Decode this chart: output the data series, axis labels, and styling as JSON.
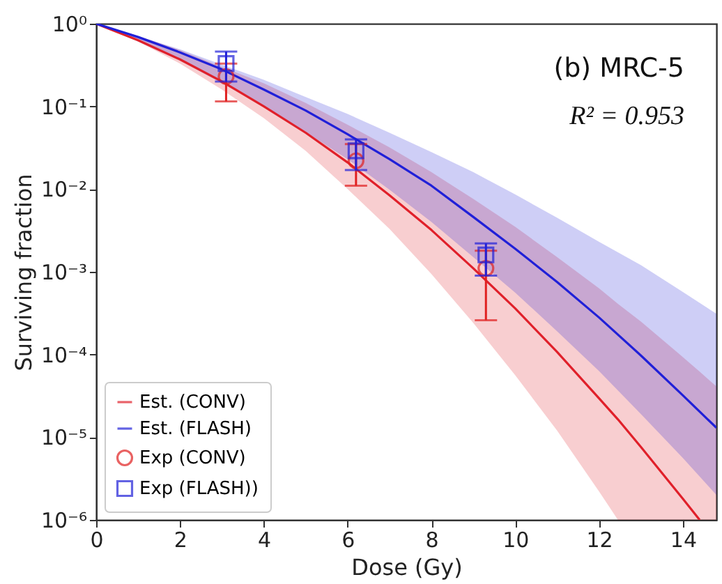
{
  "chart_data": {
    "type": "line",
    "xlabel": "Dose (Gy)",
    "ylabel": "Surviving fraction",
    "log": true,
    "grid": false,
    "legend": "bottom left",
    "xlim": [
      0,
      14.8
    ],
    "xticks": [
      0,
      2,
      4,
      6,
      8,
      10,
      12,
      14
    ],
    "ylim": [
      1e-06,
      1
    ],
    "yticks": [
      {
        "value": 1e-06,
        "label": "10⁻⁶"
      },
      {
        "value": 1e-05,
        "label": "10⁻⁵"
      },
      {
        "value": 0.0001,
        "label": "10⁻⁴"
      },
      {
        "value": 0.001,
        "label": "10⁻³"
      },
      {
        "value": 0.01,
        "label": "10⁻²"
      },
      {
        "value": 0.1,
        "label": "10⁻¹"
      },
      {
        "value": 1,
        "label": "10⁰"
      }
    ],
    "annotations": [
      "(b) MRC-5",
      "R² = 0.953"
    ],
    "series": [
      {
        "name": "Est. (CONV)",
        "color": "#e0202a",
        "x": [
          0,
          1,
          2,
          3,
          4,
          5,
          6,
          7,
          8,
          9,
          10,
          11,
          12,
          12.45,
          13,
          14,
          14.4,
          14.8
        ],
        "values": [
          1,
          0.63,
          0.37,
          0.2,
          0.1,
          0.048,
          0.021,
          0.0084,
          0.0032,
          0.0011,
          0.00036,
          0.000107,
          2.95e-05,
          1.64e-05,
          7.6e-06,
          1.8e-06,
          1e-06,
          null
        ],
        "upper": [
          1,
          0.71,
          0.48,
          0.3,
          0.19,
          0.11,
          0.06,
          0.032,
          0.016,
          0.0076,
          0.0035,
          0.0015,
          0.00063,
          0.00041,
          0.00025,
          9.3e-05,
          6.2e-05,
          4.1e-05
        ],
        "lower": [
          1,
          0.61,
          0.33,
          0.16,
          0.072,
          0.029,
          0.01,
          0.0033,
          0.00094,
          0.00024,
          5.6e-05,
          1.2e-05,
          2.2e-06,
          1e-06,
          1e-06,
          1e-06,
          1e-06,
          1e-06
        ]
      },
      {
        "name": "Est. (FLASH)",
        "color": "#2020d8",
        "x": [
          0,
          1,
          2,
          3,
          4,
          5,
          6,
          7,
          8,
          9,
          10,
          11,
          12,
          13,
          14,
          14.8
        ],
        "values": [
          1,
          0.69,
          0.45,
          0.28,
          0.16,
          0.089,
          0.046,
          0.023,
          0.011,
          0.0046,
          0.0019,
          0.00075,
          0.00028,
          9.7e-05,
          3.2e-05,
          1.3e-05
        ],
        "upper": [
          1,
          0.71,
          0.49,
          0.32,
          0.21,
          0.13,
          0.081,
          0.048,
          0.028,
          0.016,
          0.0086,
          0.0045,
          0.0023,
          0.0012,
          0.00057,
          0.00031
        ],
        "lower": [
          1,
          0.61,
          0.36,
          0.19,
          0.1,
          0.049,
          0.023,
          0.0098,
          0.004,
          0.0015,
          0.00056,
          0.00019,
          6.3e-05,
          1.9e-05,
          5.6e-06,
          2e-06
        ]
      },
      {
        "name": "Exp (CONV)",
        "type": "scatter",
        "marker": "circle",
        "color": "#e02020",
        "x": [
          3.1,
          6.2,
          9.3
        ],
        "values": [
          0.23,
          0.022,
          0.0011
        ],
        "errors": [
          [
            0.115,
            0.33
          ],
          [
            0.011,
            0.035
          ],
          [
            0.00026,
            0.0018
          ]
        ]
      },
      {
        "name": "Exp (FLASH))",
        "type": "scatter",
        "marker": "square",
        "color": "#2020d8",
        "x": [
          3.1,
          6.2,
          9.3
        ],
        "values": [
          0.33,
          0.029,
          0.0016
        ],
        "errors": [
          [
            0.2,
            0.46
          ],
          [
            0.017,
            0.04
          ],
          [
            0.0009,
            0.0022
          ]
        ]
      }
    ]
  }
}
